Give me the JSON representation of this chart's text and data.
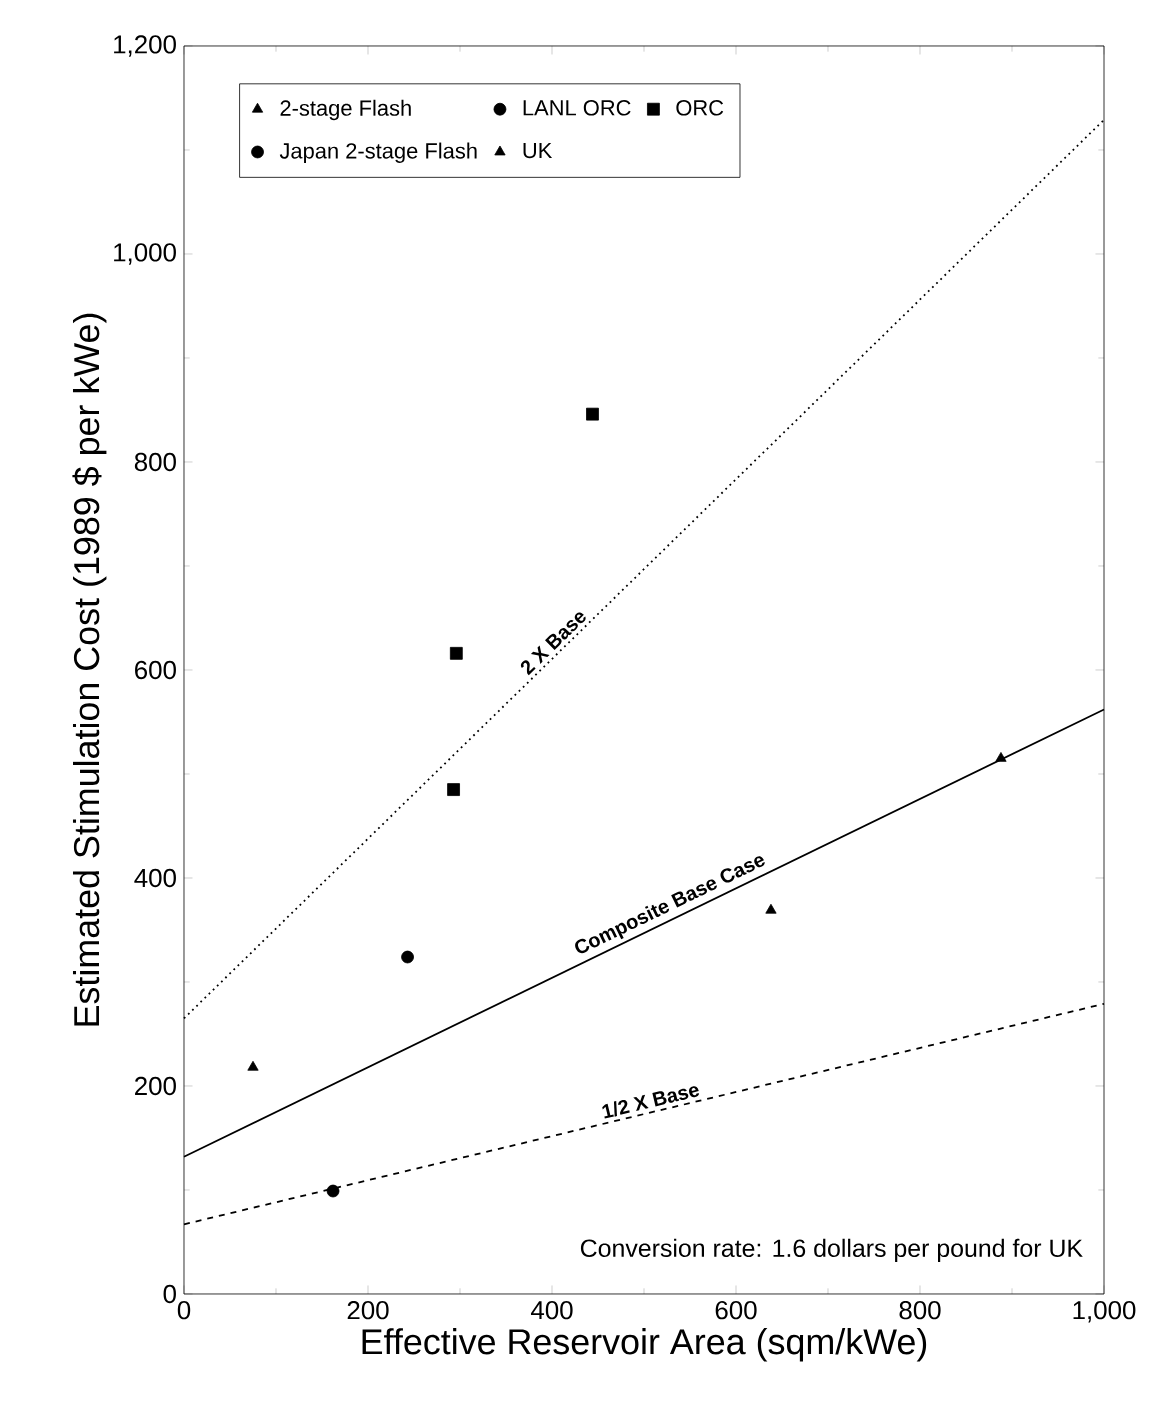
{
  "chart_data": {
    "type": "scatter",
    "xlabel": "Effective Reservoir Area (sqm/kWe)",
    "ylabel": "Estimated Stimulation Cost (1989 $ per kWe)",
    "xlim": [
      0,
      1000
    ],
    "xticks": [
      0,
      200,
      400,
      600,
      800,
      {
        "value": 1000,
        "label": "1,000"
      }
    ],
    "ylim": [
      0,
      1200
    ],
    "yticks": [
      0,
      200,
      400,
      600,
      800,
      {
        "value": 1000,
        "label": "1,000"
      },
      {
        "value": 1200,
        "label": "1,200"
      }
    ],
    "grid": false,
    "legend": "top left",
    "series": [
      {
        "name": "2-stage Flash",
        "color": "#000000",
        "marker": "triangle",
        "x": [
          75
        ],
        "values": [
          218
        ]
      },
      {
        "name": "LANL ORC",
        "color": "#000000",
        "marker": "circle",
        "x": [
          162
        ],
        "values": [
          99
        ]
      },
      {
        "name": "ORC",
        "color": "#000000",
        "marker": "square",
        "x": [
          296,
          293,
          444
        ],
        "values": [
          616,
          485,
          846
        ]
      },
      {
        "name": "Japan 2-stage Flash",
        "color": "#000000",
        "marker": "circle",
        "x": [
          243
        ],
        "values": [
          324
        ]
      },
      {
        "name": "UK",
        "color": "#000000",
        "marker": "triangle",
        "x": [
          638,
          888
        ],
        "values": [
          369,
          515
        ]
      },
      {
        "type": "line",
        "color": "#000000",
        "marker": "none",
        "line_style": "dotted",
        "x": [
          0,
          1000
        ],
        "values": [
          265,
          1129
        ]
      },
      {
        "type": "line",
        "color": "#000000",
        "marker": "none",
        "line_style": "solid",
        "x": [
          0,
          1000
        ],
        "values": [
          132,
          562
        ]
      },
      {
        "type": "line",
        "color": "#000000",
        "marker": "none",
        "line_style": "dashed",
        "x": [
          0,
          1000
        ],
        "values": [
          67,
          279
        ]
      }
    ],
    "annotations": [
      "2 X Base",
      "Composite Base Case",
      "1/2 X Base",
      "Conversion rate: 1.6 dollars per pound for UK"
    ]
  }
}
